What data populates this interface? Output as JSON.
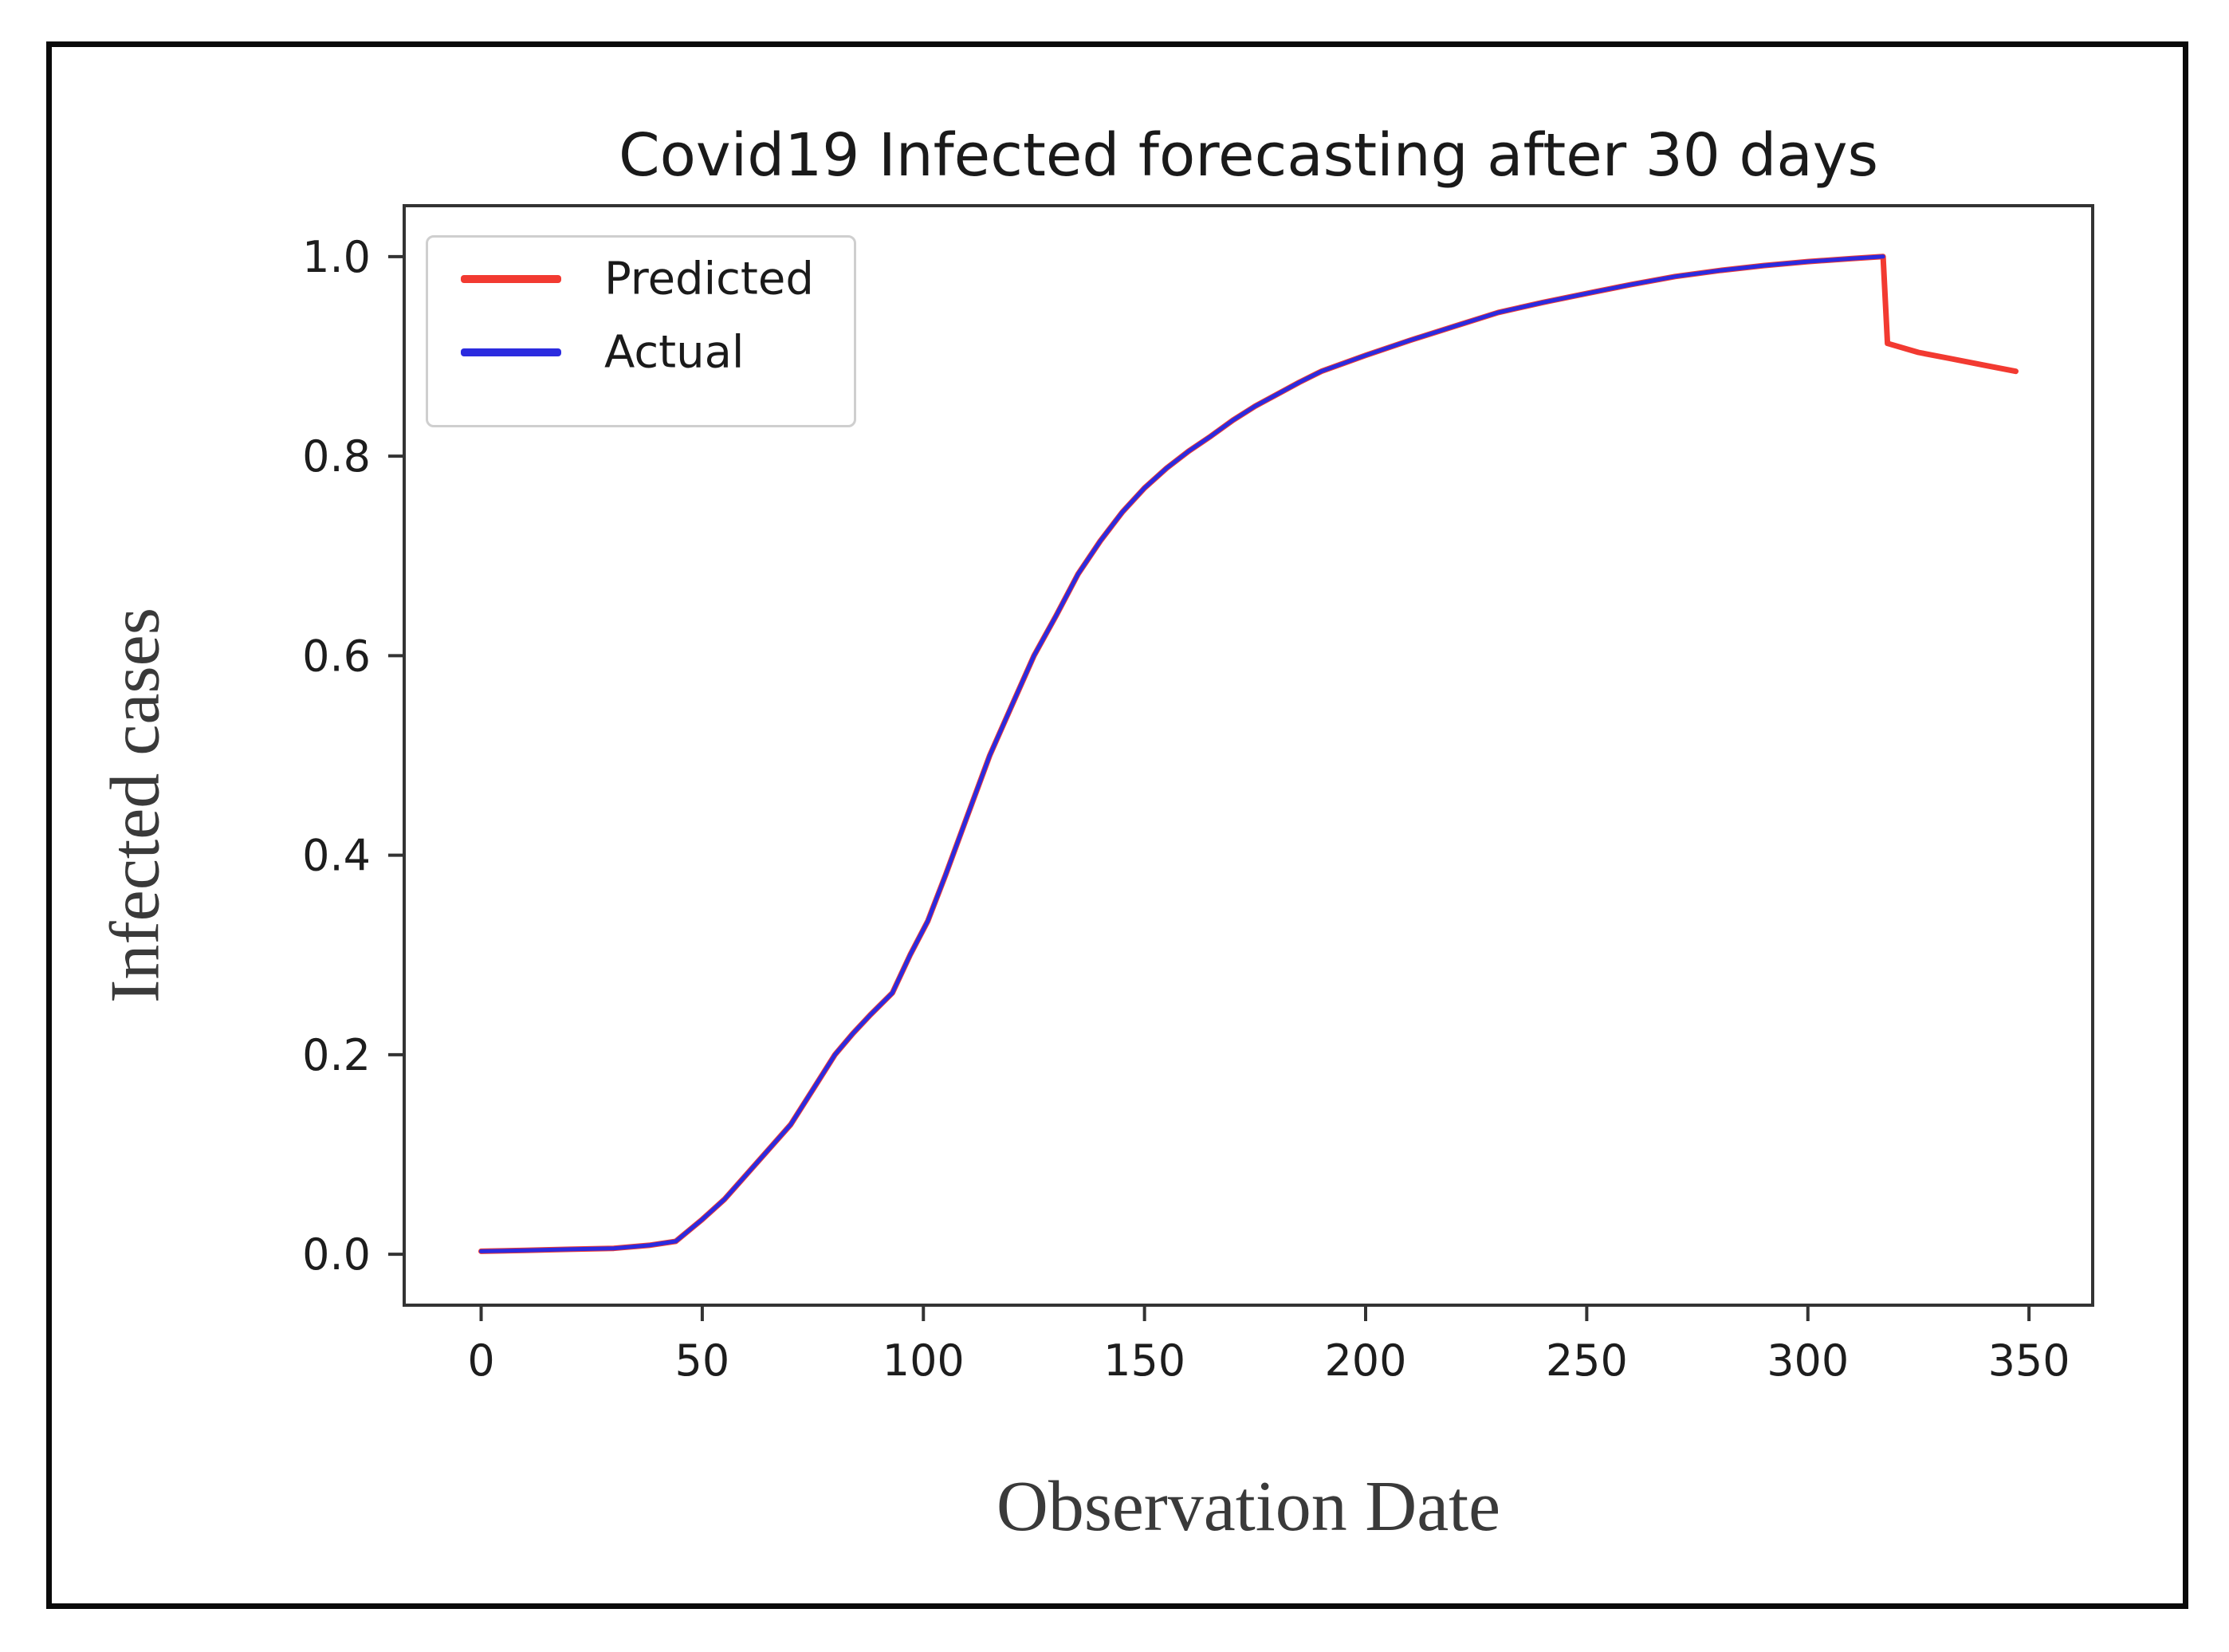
{
  "figure": {
    "background": "#ffffff",
    "border_color": "#0a0a0a",
    "spine_color": "#333333",
    "tick_label_color": "#1d1d1d"
  },
  "chart_data": {
    "type": "line",
    "title": "Covid19 Infected forecasting after 30 days",
    "xlabel": "Observation Date",
    "ylabel": "Infected cases",
    "x_ticks": [
      0,
      50,
      100,
      150,
      200,
      250,
      300,
      350
    ],
    "y_ticks": [
      "0.0",
      "0.2",
      "0.4",
      "0.6",
      "0.8",
      "1.0"
    ],
    "xlim": [
      -17.4,
      364.4
    ],
    "ylim": [
      -0.051,
      1.051
    ],
    "grid": false,
    "legend": {
      "position": "upper-left",
      "entries": [
        {
          "label": "Predicted",
          "color": "#f23a31"
        },
        {
          "label": "Actual",
          "color": "#2b2bdf"
        }
      ]
    },
    "series": [
      {
        "name": "Predicted",
        "color": "#f23a31",
        "width": 7,
        "points": [
          [
            0,
            0.003
          ],
          [
            10,
            0.004
          ],
          [
            20,
            0.005
          ],
          [
            30,
            0.006
          ],
          [
            38,
            0.009
          ],
          [
            44,
            0.013
          ],
          [
            50,
            0.035
          ],
          [
            55,
            0.055
          ],
          [
            60,
            0.08
          ],
          [
            65,
            0.105
          ],
          [
            70,
            0.13
          ],
          [
            75,
            0.165
          ],
          [
            80,
            0.2
          ],
          [
            84,
            0.221
          ],
          [
            88,
            0.24
          ],
          [
            93,
            0.262
          ],
          [
            97,
            0.3
          ],
          [
            101,
            0.334
          ],
          [
            105,
            0.38
          ],
          [
            110,
            0.44
          ],
          [
            115,
            0.5
          ],
          [
            120,
            0.55
          ],
          [
            125,
            0.6
          ],
          [
            130,
            0.64
          ],
          [
            135,
            0.682
          ],
          [
            140,
            0.715
          ],
          [
            145,
            0.744
          ],
          [
            150,
            0.768
          ],
          [
            155,
            0.788
          ],
          [
            160,
            0.805
          ],
          [
            165,
            0.82
          ],
          [
            170,
            0.836
          ],
          [
            175,
            0.85
          ],
          [
            180,
            0.862
          ],
          [
            185,
            0.874
          ],
          [
            190,
            0.885
          ],
          [
            195,
            0.893
          ],
          [
            200,
            0.901
          ],
          [
            210,
            0.916
          ],
          [
            220,
            0.93
          ],
          [
            230,
            0.944
          ],
          [
            240,
            0.954
          ],
          [
            250,
            0.963
          ],
          [
            260,
            0.972
          ],
          [
            270,
            0.98
          ],
          [
            280,
            0.986
          ],
          [
            290,
            0.991
          ],
          [
            300,
            0.995
          ],
          [
            310,
            0.998
          ],
          [
            317,
            1.0
          ],
          [
            318,
            0.913
          ],
          [
            325,
            0.904
          ],
          [
            332,
            0.898
          ],
          [
            340,
            0.891
          ],
          [
            347,
            0.885
          ]
        ]
      },
      {
        "name": "Actual",
        "color": "#2b2bdf",
        "width": 5,
        "points": [
          [
            0,
            0.003
          ],
          [
            10,
            0.004
          ],
          [
            20,
            0.005
          ],
          [
            30,
            0.006
          ],
          [
            38,
            0.009
          ],
          [
            44,
            0.013
          ],
          [
            50,
            0.035
          ],
          [
            55,
            0.055
          ],
          [
            60,
            0.08
          ],
          [
            65,
            0.105
          ],
          [
            70,
            0.13
          ],
          [
            75,
            0.165
          ],
          [
            80,
            0.2
          ],
          [
            84,
            0.221
          ],
          [
            88,
            0.24
          ],
          [
            93,
            0.262
          ],
          [
            97,
            0.3
          ],
          [
            101,
            0.334
          ],
          [
            105,
            0.38
          ],
          [
            110,
            0.44
          ],
          [
            115,
            0.5
          ],
          [
            120,
            0.55
          ],
          [
            125,
            0.6
          ],
          [
            130,
            0.64
          ],
          [
            135,
            0.682
          ],
          [
            140,
            0.715
          ],
          [
            145,
            0.744
          ],
          [
            150,
            0.768
          ],
          [
            155,
            0.788
          ],
          [
            160,
            0.805
          ],
          [
            165,
            0.82
          ],
          [
            170,
            0.836
          ],
          [
            175,
            0.85
          ],
          [
            180,
            0.862
          ],
          [
            185,
            0.874
          ],
          [
            190,
            0.885
          ],
          [
            195,
            0.893
          ],
          [
            200,
            0.901
          ],
          [
            210,
            0.916
          ],
          [
            220,
            0.93
          ],
          [
            230,
            0.944
          ],
          [
            240,
            0.954
          ],
          [
            250,
            0.963
          ],
          [
            260,
            0.972
          ],
          [
            270,
            0.98
          ],
          [
            280,
            0.986
          ],
          [
            290,
            0.991
          ],
          [
            300,
            0.995
          ],
          [
            310,
            0.998
          ],
          [
            317,
            1.0
          ]
        ]
      }
    ]
  }
}
